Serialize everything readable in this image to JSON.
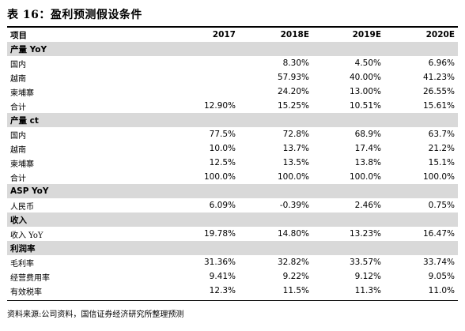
{
  "title": "表 16：盈利预测假设条件",
  "header": [
    "项目",
    "2017",
    "2018E",
    "2019E",
    "2020E"
  ],
  "rows": [
    {
      "type": "section",
      "cells": [
        "产量 YoY",
        "",
        "",
        "",
        ""
      ]
    },
    {
      "type": "data",
      "cells": [
        "国内",
        "",
        "8.30%",
        "4.50%",
        "6.96%"
      ]
    },
    {
      "type": "data",
      "cells": [
        "越南",
        "",
        "57.93%",
        "40.00%",
        "41.23%"
      ]
    },
    {
      "type": "data",
      "cells": [
        "柬埔寨",
        "",
        "24.20%",
        "13.00%",
        "26.55%"
      ]
    },
    {
      "type": "data",
      "cells": [
        "合计",
        "12.90%",
        "15.25%",
        "10.51%",
        "15.61%"
      ]
    },
    {
      "type": "section",
      "cells": [
        "产量 ct",
        "",
        "",
        "",
        ""
      ]
    },
    {
      "type": "data",
      "cells": [
        "国内",
        "77.5%",
        "72.8%",
        "68.9%",
        "63.7%"
      ]
    },
    {
      "type": "data",
      "cells": [
        "越南",
        "10.0%",
        "13.7%",
        "17.4%",
        "21.2%"
      ]
    },
    {
      "type": "data",
      "cells": [
        "柬埔寨",
        "12.5%",
        "13.5%",
        "13.8%",
        "15.1%"
      ]
    },
    {
      "type": "data",
      "cells": [
        "合计",
        "100.0%",
        "100.0%",
        "100.0%",
        "100.0%"
      ]
    },
    {
      "type": "section",
      "cells": [
        "ASP YoY",
        "",
        "",
        "",
        ""
      ]
    },
    {
      "type": "data",
      "cells": [
        "人民币",
        "6.09%",
        "-0.39%",
        "2.46%",
        "0.75%"
      ]
    },
    {
      "type": "section",
      "cells": [
        "收入",
        "",
        "",
        "",
        ""
      ]
    },
    {
      "type": "data",
      "cells": [
        "收入 YoY",
        "19.78%",
        "14.80%",
        "13.23%",
        "16.47%"
      ]
    },
    {
      "type": "section",
      "cells": [
        "利润率",
        "",
        "",
        "",
        ""
      ]
    },
    {
      "type": "data",
      "cells": [
        "毛利率",
        "31.36%",
        "32.82%",
        "33.57%",
        "33.74%"
      ]
    },
    {
      "type": "data",
      "cells": [
        "经营费用率",
        "9.41%",
        "9.22%",
        "9.12%",
        "9.05%"
      ]
    },
    {
      "type": "data",
      "cells": [
        "有效税率",
        "12.3%",
        "11.5%",
        "11.3%",
        "11.0%"
      ]
    }
  ],
  "footer": "资料来源:公司资料，国信证券经济研究所整理预测",
  "colors": {
    "section_bg": "#d9d9d9",
    "rule": "#000000"
  }
}
